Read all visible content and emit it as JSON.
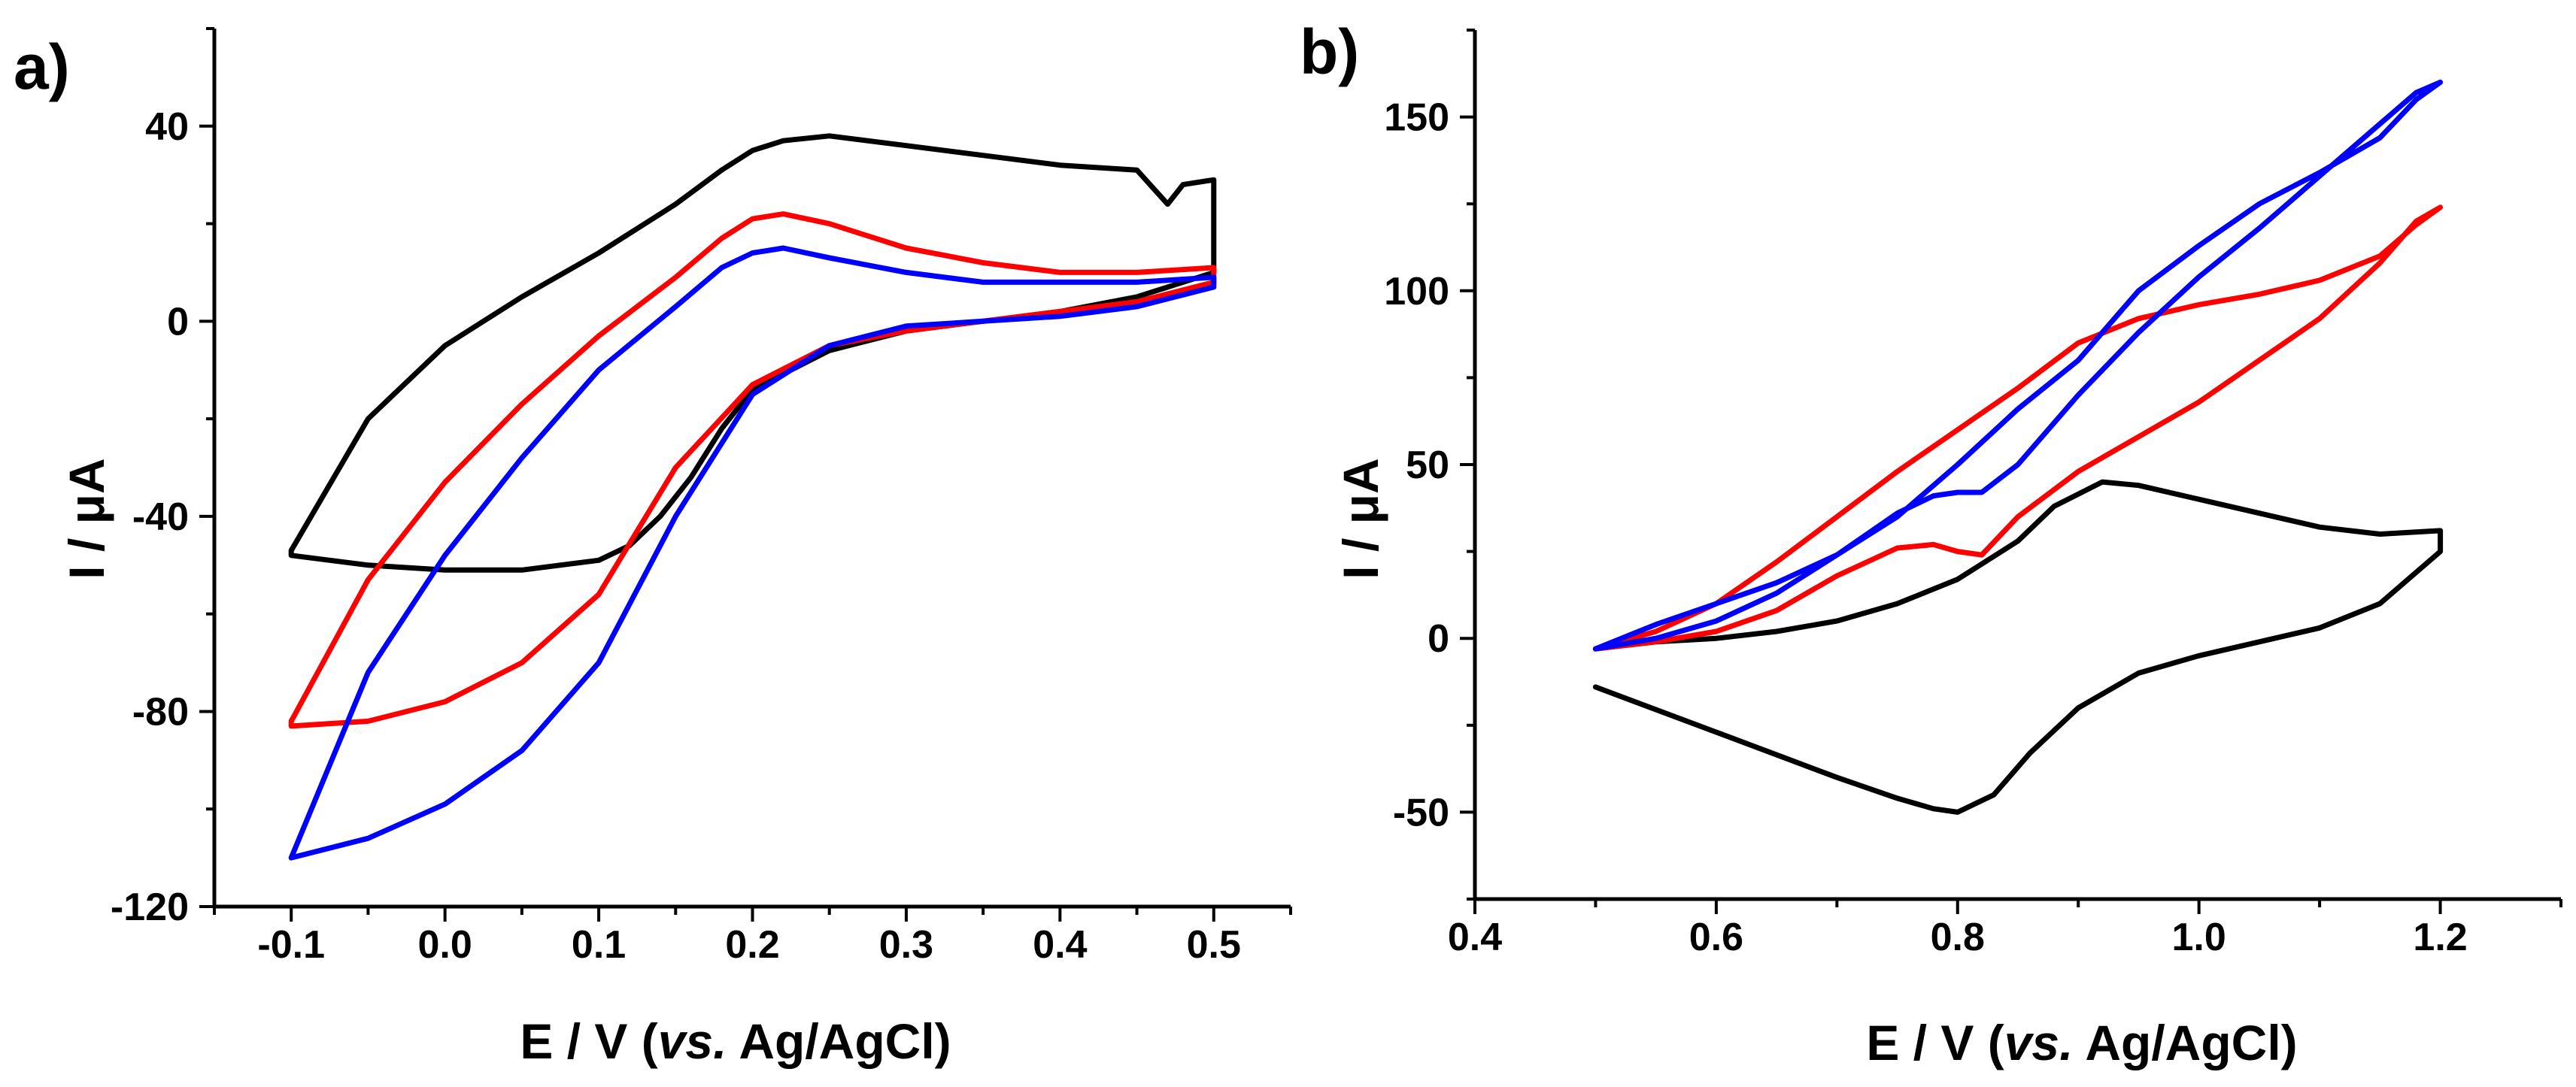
{
  "chart_data": [
    {
      "type": "line",
      "panel_label": "a)",
      "xlabel": {
        "prefix": "E / V (",
        "italic": "vs.",
        "suffix": " Ag/AgCl)"
      },
      "ylabel": "I / μA",
      "xlim": [
        -0.15,
        0.55
      ],
      "ylim": [
        -120,
        60
      ],
      "xticks": [
        -0.1,
        0.0,
        0.1,
        0.2,
        0.3,
        0.4,
        0.5
      ],
      "xtick_labels": [
        "-0.1",
        "0.0",
        "0.1",
        "0.2",
        "0.3",
        "0.4",
        "0.5"
      ],
      "yticks": [
        -120,
        -80,
        -40,
        0,
        40
      ],
      "ytick_labels": [
        "-120",
        "-80",
        "-40",
        "0",
        "40"
      ],
      "series": [
        {
          "name": "black",
          "color": "#000000",
          "x": [
            -0.1,
            -0.1,
            -0.05,
            0.0,
            0.05,
            0.1,
            0.12,
            0.14,
            0.16,
            0.18,
            0.2,
            0.25,
            0.3,
            0.35,
            0.4,
            0.45,
            0.48,
            0.5,
            0.5,
            0.48,
            0.47,
            0.45,
            0.4,
            0.35,
            0.3,
            0.25,
            0.22,
            0.2,
            0.18,
            0.15,
            0.1,
            0.05,
            0.0,
            -0.05,
            -0.1
          ],
          "values": [
            -47,
            -48,
            -50,
            -51,
            -51,
            -49,
            -46,
            -40,
            -32,
            -22,
            -14,
            -6,
            -2,
            0,
            2,
            5,
            8,
            10,
            29,
            28,
            24,
            31,
            32,
            34,
            36,
            38,
            37,
            35,
            31,
            24,
            14,
            5,
            -5,
            -20,
            -47
          ]
        },
        {
          "name": "red",
          "color": "#ff0000",
          "x": [
            -0.1,
            -0.1,
            -0.05,
            0.0,
            0.05,
            0.1,
            0.15,
            0.2,
            0.25,
            0.3,
            0.35,
            0.4,
            0.45,
            0.5,
            0.5,
            0.45,
            0.4,
            0.35,
            0.3,
            0.25,
            0.22,
            0.2,
            0.18,
            0.15,
            0.1,
            0.05,
            0.0,
            -0.05,
            -0.1
          ],
          "values": [
            -82,
            -83,
            -82,
            -78,
            -70,
            -56,
            -30,
            -13,
            -5,
            -2,
            0,
            2,
            4,
            8,
            11,
            10,
            10,
            12,
            15,
            20,
            22,
            21,
            17,
            9,
            -3,
            -17,
            -33,
            -53,
            -82
          ]
        },
        {
          "name": "blue",
          "color": "#0000ff",
          "x": [
            -0.1,
            -0.05,
            0.0,
            0.05,
            0.1,
            0.15,
            0.2,
            0.25,
            0.3,
            0.35,
            0.4,
            0.45,
            0.5,
            0.5,
            0.45,
            0.4,
            0.35,
            0.3,
            0.25,
            0.22,
            0.2,
            0.18,
            0.15,
            0.1,
            0.05,
            0.0,
            -0.05,
            -0.1
          ],
          "values": [
            -110,
            -106,
            -99,
            -88,
            -70,
            -40,
            -15,
            -5,
            -1,
            0,
            1,
            3,
            7,
            9,
            8,
            8,
            8,
            10,
            13,
            15,
            14,
            11,
            3,
            -10,
            -28,
            -48,
            -72,
            -110
          ]
        }
      ]
    },
    {
      "type": "line",
      "panel_label": "b)",
      "xlabel": {
        "prefix": "E / V (",
        "italic": "vs.",
        "suffix": " Ag/AgCl)"
      },
      "ylabel": "I / μA",
      "xlim": [
        0.4,
        1.3
      ],
      "ylim": [
        -75,
        175
      ],
      "xticks": [
        0.4,
        0.6,
        0.8,
        1.0,
        1.2
      ],
      "xtick_labels": [
        "0.4",
        "0.6",
        "0.8",
        "1.0",
        "1.2"
      ],
      "yticks": [
        -50,
        0,
        50,
        100,
        150
      ],
      "ytick_labels": [
        "-50",
        "0",
        "50",
        "100",
        "150"
      ],
      "series": [
        {
          "name": "black",
          "color": "#000000",
          "x": [
            0.5,
            0.55,
            0.6,
            0.65,
            0.7,
            0.75,
            0.8,
            0.85,
            0.88,
            0.92,
            0.95,
            1.0,
            1.05,
            1.1,
            1.15,
            1.2,
            1.2,
            1.15,
            1.1,
            1.05,
            1.0,
            0.95,
            0.9,
            0.86,
            0.83,
            0.8,
            0.78,
            0.75,
            0.7,
            0.6,
            0.5
          ],
          "values": [
            -3,
            -1,
            0,
            2,
            5,
            10,
            17,
            28,
            38,
            45,
            44,
            40,
            36,
            32,
            30,
            31,
            25,
            10,
            3,
            -1,
            -5,
            -10,
            -20,
            -33,
            -45,
            -50,
            -49,
            -46,
            -40,
            -27,
            -14
          ]
        },
        {
          "name": "red",
          "color": "#ff0000",
          "x": [
            0.5,
            0.55,
            0.6,
            0.65,
            0.7,
            0.75,
            0.78,
            0.8,
            0.82,
            0.85,
            0.9,
            0.95,
            1.0,
            1.05,
            1.1,
            1.15,
            1.18,
            1.2,
            1.18,
            1.15,
            1.1,
            1.05,
            1.0,
            0.95,
            0.9,
            0.85,
            0.8,
            0.75,
            0.7,
            0.65,
            0.6,
            0.55,
            0.5
          ],
          "values": [
            -3,
            -1,
            2,
            8,
            18,
            26,
            27,
            25,
            24,
            35,
            48,
            58,
            68,
            80,
            92,
            108,
            120,
            124,
            119,
            110,
            103,
            99,
            96,
            92,
            85,
            72,
            60,
            48,
            35,
            22,
            10,
            2,
            -3
          ]
        },
        {
          "name": "blue",
          "color": "#0000ff",
          "x": [
            0.5,
            0.55,
            0.6,
            0.65,
            0.7,
            0.75,
            0.78,
            0.8,
            0.82,
            0.85,
            0.9,
            0.95,
            1.0,
            1.05,
            1.1,
            1.15,
            1.18,
            1.2,
            1.18,
            1.15,
            1.1,
            1.05,
            1.0,
            0.95,
            0.9,
            0.85,
            0.8,
            0.75,
            0.7,
            0.65,
            0.6,
            0.55,
            0.5
          ],
          "values": [
            -3,
            0,
            5,
            13,
            24,
            36,
            41,
            42,
            42,
            50,
            70,
            88,
            104,
            118,
            133,
            148,
            157,
            160,
            155,
            144,
            134,
            125,
            113,
            100,
            80,
            66,
            50,
            35,
            24,
            16,
            10,
            4,
            -3
          ]
        }
      ]
    }
  ]
}
